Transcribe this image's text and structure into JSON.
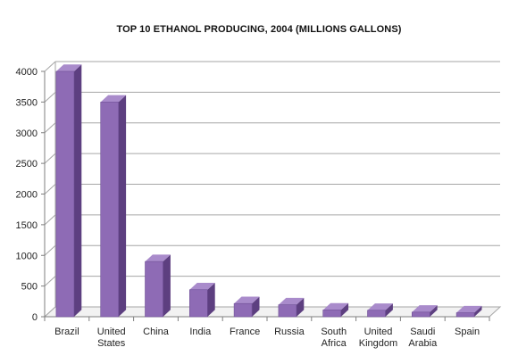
{
  "chart_data": {
    "type": "bar",
    "title": "TOP 10 ETHANOL PRODUCING, 2004 (MILLIONS GALLONS)",
    "xlabel": "",
    "ylabel": "",
    "categories": [
      [
        "Brazil"
      ],
      [
        "United",
        "States"
      ],
      [
        "China"
      ],
      [
        "India"
      ],
      [
        "France"
      ],
      [
        "Russia"
      ],
      [
        "South",
        "Africa"
      ],
      [
        "United",
        "Kingdom"
      ],
      [
        "Saudi",
        "Arabia"
      ],
      [
        "Spain"
      ]
    ],
    "values": [
      4000,
      3500,
      900,
      440,
      215,
      195,
      110,
      105,
      75,
      65
    ],
    "ylim": [
      0,
      4000
    ],
    "yticks": [
      0,
      500,
      1000,
      1500,
      2000,
      2500,
      3000,
      3500,
      4000
    ],
    "grid": true,
    "legend": "none",
    "colors": {
      "bar_front": "#8e6bb5",
      "bar_side": "#5d3f80",
      "bar_top": "#a98bcb",
      "grid": "#a6a6a6",
      "axis": "#7f7f7f"
    }
  }
}
